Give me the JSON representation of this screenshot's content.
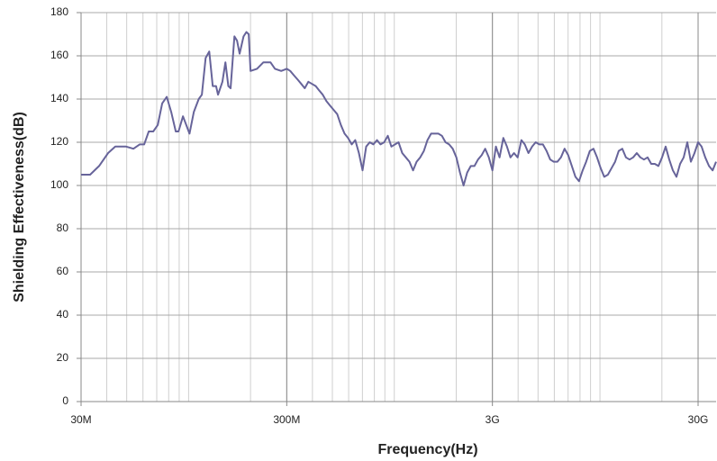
{
  "chart_data": {
    "type": "line",
    "x_label": "Frequency(Hz)",
    "y_label": "Shielding Effectiveness(dB)",
    "x_log": true,
    "grid": true,
    "color": "#67649a",
    "xlim": [
      30000000.0,
      36700000000.0
    ],
    "ylim": [
      0,
      180
    ],
    "xticks": [
      {
        "value": 30000000.0,
        "label": "30M"
      },
      {
        "value": 300000000.0,
        "label": "300M"
      },
      {
        "value": 3000000000.0,
        "label": "3G"
      },
      {
        "value": 30000000000.0,
        "label": "30G"
      }
    ],
    "yticks": [
      0,
      20,
      40,
      60,
      80,
      100,
      120,
      140,
      160,
      180
    ],
    "x": [
      30000000.0,
      33200000.0,
      36700000.0,
      40600000.0,
      44000000.0,
      49700000.0,
      53900000.0,
      57800000.0,
      60800000.0,
      64000000.0,
      67300000.0,
      70800000.0,
      74400000.0,
      78300000.0,
      82300000.0,
      86600000.0,
      89300000.0,
      93900000.0,
      101000000.0,
      106000000.0,
      112000000.0,
      116000000.0,
      121000000.0,
      126000000.0,
      131000000.0,
      136000000.0,
      139000000.0,
      146000000.0,
      151000000.0,
      156000000.0,
      160000000.0,
      167000000.0,
      172000000.0,
      177000000.0,
      185000000.0,
      191000000.0,
      196000000.0,
      200000000.0,
      215000000.0,
      231000000.0,
      250000000.0,
      263000000.0,
      282000000.0,
      300000000.0,
      312000000.0,
      325000000.0,
      339000000.0,
      353000000.0,
      367000000.0,
      382000000.0,
      398000000.0,
      415000000.0,
      431000000.0,
      449000000.0,
      468000000.0,
      487000000.0,
      507000000.0,
      528000000.0,
      550000000.0,
      573000000.0,
      596000000.0,
      621000000.0,
      646000000.0,
      673000000.0,
      701000000.0,
      730000000.0,
      760000000.0,
      791000000.0,
      824000000.0,
      857000000.0,
      893000000.0,
      930000000.0,
      968000000.0,
      1008000000.0,
      1049000000.0,
      1093000000.0,
      1138000000.0,
      1185000000.0,
      1234000000.0,
      1284000000.0,
      1337000000.0,
      1393000000.0,
      1450000000.0,
      1510000000.0,
      1572000000.0,
      1637000000.0,
      1704000000.0,
      1775000000.0,
      1848000000.0,
      1924000000.0,
      2004000000.0,
      2086000000.0,
      2172000000.0,
      2262000000.0,
      2355000000.0,
      2453000000.0,
      2553000000.0,
      2659000000.0,
      2767000000.0,
      2882000000.0,
      3000000000.0,
      3120000000.0,
      3250000000.0,
      3390000000.0,
      3530000000.0,
      3670000000.0,
      3820000000.0,
      3980000000.0,
      4150000000.0,
      4310000000.0,
      4490000000.0,
      4680000000.0,
      4870000000.0,
      5070000000.0,
      5280000000.0,
      5500000000.0,
      5730000000.0,
      5960000000.0,
      6210000000.0,
      6460000000.0,
      6730000000.0,
      7010000000.0,
      7300000000.0,
      7600000000.0,
      7910000000.0,
      8240000000.0,
      8570000000.0,
      8930000000.0,
      9300000000.0,
      9680000000.0,
      10080000000.0,
      10490000000.0,
      10930000000.0,
      11380000000.0,
      11850000000.0,
      12340000000.0,
      12840000000.0,
      13370000000.0,
      13930000000.0,
      14500000000.0,
      15100000000.0,
      15720000000.0,
      16370000000.0,
      17040000000.0,
      17750000000.0,
      18480000000.0,
      19240000000.0,
      20040000000.0,
      20860000000.0,
      21720000000.0,
      22620000000.0,
      23550000000.0,
      24530000000.0,
      25530000000.0,
      26590000000.0,
      27670000000.0,
      28820000000.0,
      30000000000.0,
      31200000000.0,
      32500000000.0,
      33900000000.0,
      35300000000.0,
      36700000000.0
    ],
    "values": [
      105,
      105,
      109,
      115,
      118,
      118,
      117,
      119,
      119,
      125,
      125,
      128,
      138,
      141,
      134,
      125,
      125,
      132,
      124,
      134,
      140,
      142,
      159,
      162,
      146,
      146,
      142,
      148,
      157,
      146,
      145,
      169,
      167,
      161,
      169,
      171,
      170,
      153,
      154,
      157,
      157,
      154,
      153,
      154,
      153,
      151,
      149,
      147,
      145,
      148,
      147,
      146,
      144,
      142,
      139,
      137,
      135,
      133,
      128,
      124,
      122,
      119,
      121,
      115,
      107,
      118,
      120,
      119,
      121,
      119,
      120,
      123,
      118,
      119,
      120,
      115,
      113,
      111,
      107,
      111,
      113,
      116,
      121,
      124,
      124,
      124,
      123,
      120,
      119,
      117,
      113,
      106,
      100,
      106,
      109,
      109,
      112,
      114,
      117,
      113,
      107,
      118,
      113,
      122,
      118,
      113,
      115,
      113,
      121,
      119,
      115,
      118,
      120,
      119,
      119,
      116,
      112,
      111,
      111,
      113,
      117,
      114,
      109,
      104,
      102,
      107,
      111,
      116,
      117,
      113,
      108,
      104,
      105,
      108,
      111,
      116,
      117,
      113,
      112,
      113,
      115,
      113,
      112,
      113,
      110,
      110,
      109,
      113,
      118,
      112,
      107,
      104,
      110,
      113,
      120,
      111,
      115,
      120,
      118,
      113,
      109,
      107,
      111
    ]
  }
}
